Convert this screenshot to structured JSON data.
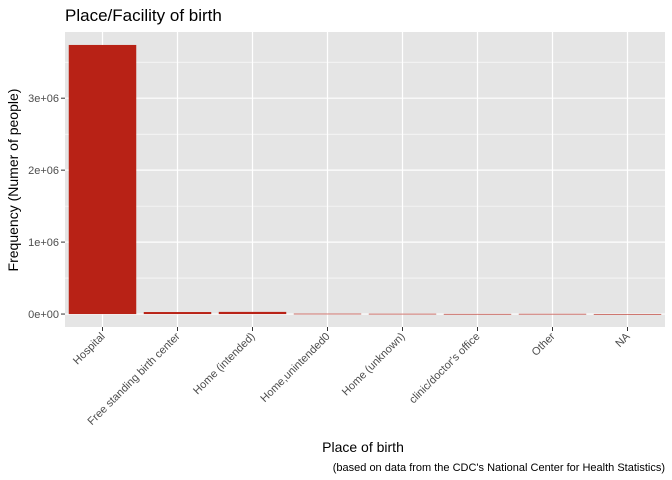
{
  "chart_data": {
    "type": "bar",
    "title": "Place/Facility of birth",
    "xlabel": "Place of birth",
    "ylabel": "Frequency (Numer of people)",
    "caption": "(based on data from the CDC's National Center for Health Statistics)",
    "categories": [
      "Hospital",
      "Free standing birth center",
      "Home (intended)",
      "Home,unintended0",
      "Home (unknown)",
      "clinic/doctor's office",
      "Other",
      "NA"
    ],
    "values": [
      3740000,
      28000,
      30000,
      5000,
      4000,
      2000,
      3000,
      1000
    ],
    "ylim": [
      -180000,
      3920000
    ],
    "yticks": [
      0,
      1000000,
      2000000,
      3000000
    ],
    "ytick_labels": [
      "0e+00",
      "1e+06",
      "2e+06",
      "3e+06"
    ],
    "grid": true,
    "bar_color": "#b82216",
    "panel_color": "#e5e5e5",
    "grid_color": "#ffffff"
  }
}
